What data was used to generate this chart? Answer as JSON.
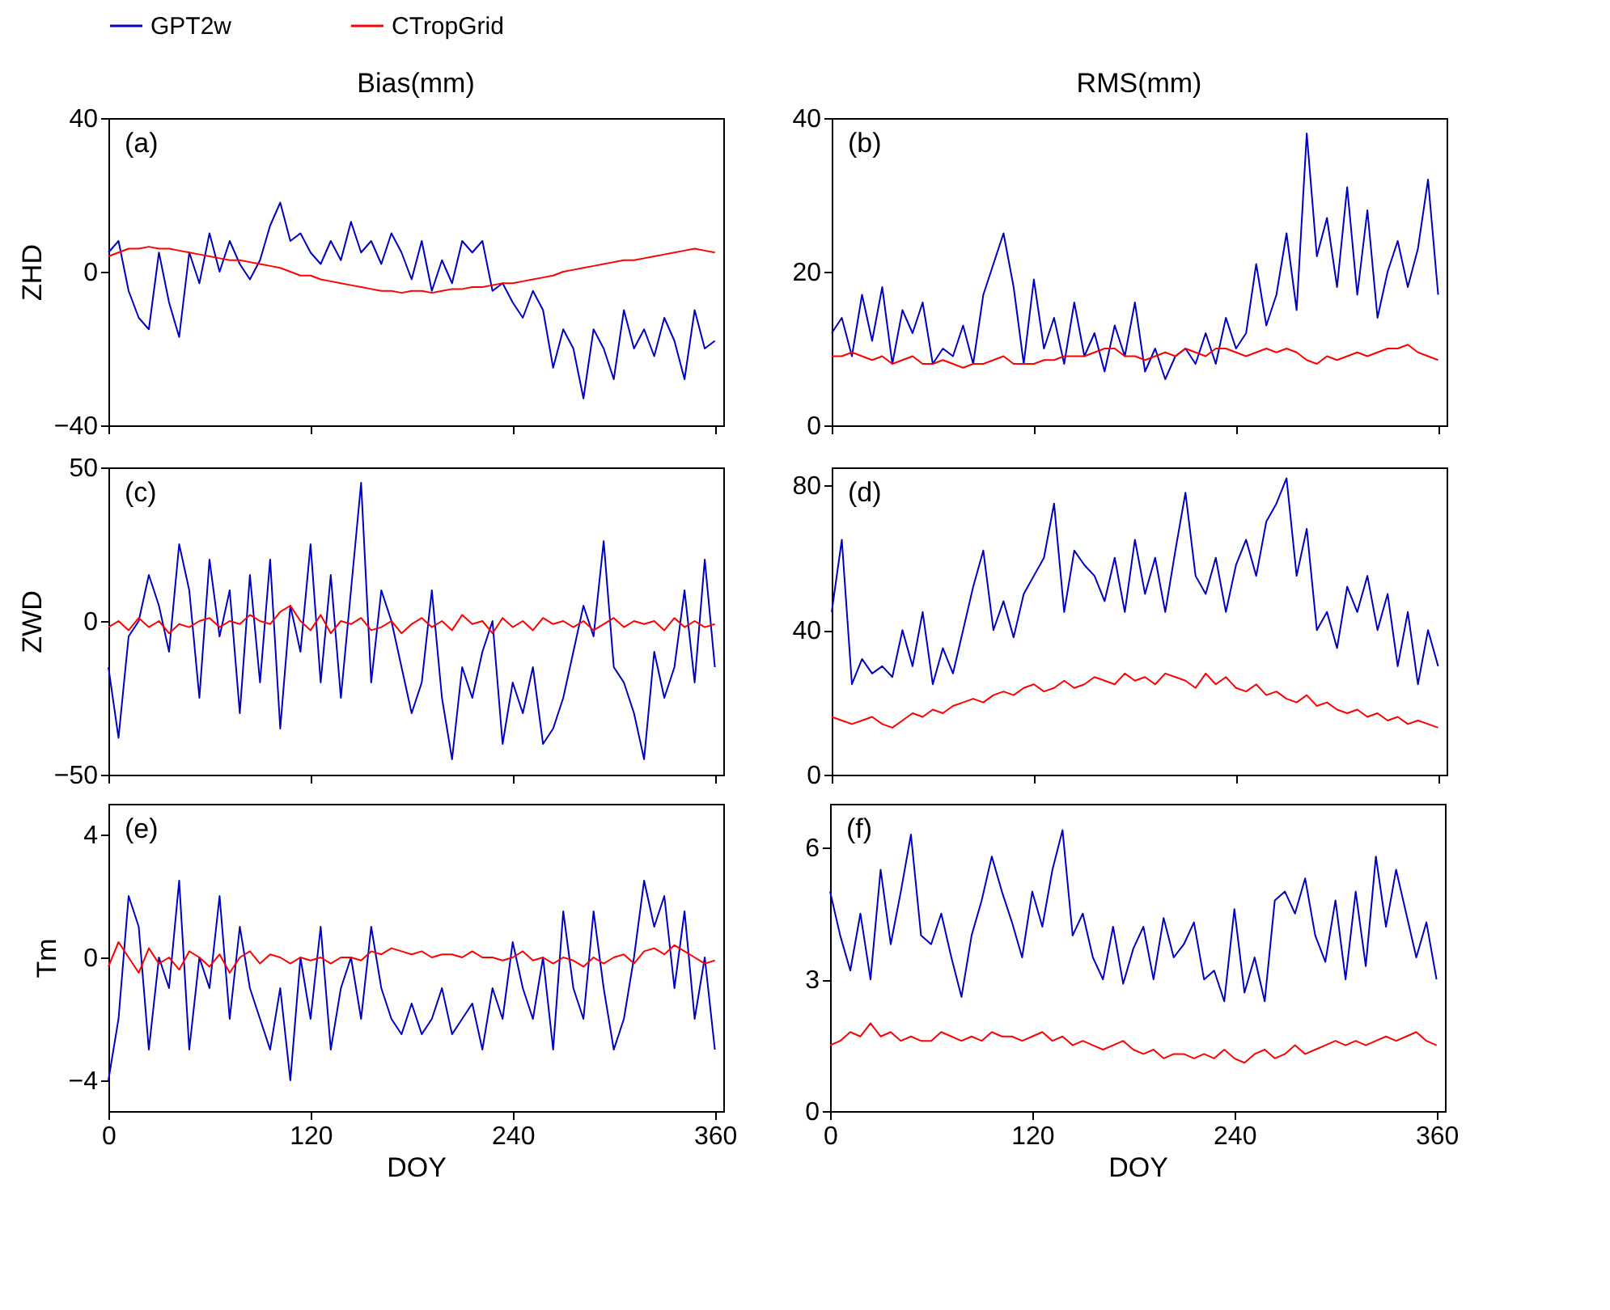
{
  "chart_data": [
    {
      "type": "line",
      "title": "Bias(mm)",
      "ylabel": "ZHD",
      "annotations": [
        "(a)"
      ],
      "legend": "top",
      "tick_labels": "y",
      "grid": false,
      "xlim": [
        0,
        365
      ],
      "xticks": [
        0,
        120,
        240,
        360
      ],
      "ylim": [
        -40,
        40
      ],
      "yticks": [
        -40,
        0,
        40
      ],
      "x": [
        0,
        6,
        12,
        18,
        24,
        30,
        36,
        42,
        48,
        54,
        60,
        66,
        72,
        78,
        84,
        90,
        96,
        102,
        108,
        114,
        120,
        126,
        132,
        138,
        144,
        150,
        156,
        162,
        168,
        174,
        180,
        186,
        192,
        198,
        204,
        210,
        216,
        222,
        228,
        234,
        240,
        246,
        252,
        258,
        264,
        270,
        276,
        282,
        288,
        294,
        300,
        306,
        312,
        318,
        324,
        330,
        336,
        342,
        348,
        354,
        360
      ],
      "series": [
        {
          "name": "GPT2w",
          "color": "#0000c0",
          "values": [
            5,
            8,
            -5,
            -12,
            -15,
            5,
            -8,
            -17,
            5,
            -3,
            10,
            0,
            8,
            2,
            -2,
            3,
            12,
            18,
            8,
            10,
            5,
            2,
            8,
            3,
            13,
            5,
            8,
            2,
            10,
            5,
            -2,
            8,
            -5,
            3,
            -3,
            8,
            5,
            8,
            -5,
            -3,
            -8,
            -12,
            -5,
            -10,
            -25,
            -15,
            -20,
            -33,
            -15,
            -20,
            -28,
            -10,
            -20,
            -15,
            -22,
            -12,
            -18,
            -28,
            -10,
            -20,
            -18
          ]
        },
        {
          "name": "CTropGrid",
          "color": "#ff0000",
          "values": [
            4,
            5,
            6,
            6,
            6.5,
            6,
            6,
            5.5,
            5,
            4.5,
            4,
            3.5,
            3,
            3,
            2.5,
            2,
            1.5,
            1,
            0,
            -1,
            -1,
            -2,
            -2.5,
            -3,
            -3.5,
            -4,
            -4.5,
            -5,
            -5,
            -5.5,
            -5,
            -5,
            -5.5,
            -5,
            -4.5,
            -4.5,
            -4,
            -4,
            -3.5,
            -3,
            -3,
            -2.5,
            -2,
            -1.5,
            -1,
            0,
            0.5,
            1,
            1.5,
            2,
            2.5,
            3,
            3,
            3.5,
            4,
            4.5,
            5,
            5.5,
            6,
            5.5,
            5
          ]
        }
      ]
    },
    {
      "type": "line",
      "title": "RMS(mm)",
      "annotations": [
        "(b)"
      ],
      "tick_labels": "y",
      "grid": false,
      "xlim": [
        0,
        365
      ],
      "xticks": [
        0,
        120,
        240,
        360
      ],
      "ylim": [
        0,
        40
      ],
      "yticks": [
        0,
        20,
        40
      ],
      "x": [
        0,
        6,
        12,
        18,
        24,
        30,
        36,
        42,
        48,
        54,
        60,
        66,
        72,
        78,
        84,
        90,
        96,
        102,
        108,
        114,
        120,
        126,
        132,
        138,
        144,
        150,
        156,
        162,
        168,
        174,
        180,
        186,
        192,
        198,
        204,
        210,
        216,
        222,
        228,
        234,
        240,
        246,
        252,
        258,
        264,
        270,
        276,
        282,
        288,
        294,
        300,
        306,
        312,
        318,
        324,
        330,
        336,
        342,
        348,
        354,
        360
      ],
      "series": [
        {
          "name": "GPT2w",
          "color": "#0000c0",
          "values": [
            12,
            14,
            9,
            17,
            11,
            18,
            8,
            15,
            12,
            16,
            8,
            10,
            9,
            13,
            8,
            17,
            21,
            25,
            18,
            8,
            19,
            10,
            14,
            8,
            16,
            9,
            12,
            7,
            13,
            9,
            16,
            7,
            10,
            6,
            9,
            10,
            8,
            12,
            8,
            14,
            10,
            12,
            21,
            13,
            17,
            25,
            15,
            38,
            22,
            27,
            18,
            31,
            17,
            28,
            14,
            20,
            24,
            18,
            23,
            32,
            17
          ]
        },
        {
          "name": "CTropGrid",
          "color": "#ff0000",
          "values": [
            9,
            9,
            9.5,
            9,
            8.5,
            9,
            8,
            8.5,
            9,
            8,
            8,
            8.5,
            8,
            7.5,
            8,
            8,
            8.5,
            9,
            8,
            8,
            8,
            8.5,
            8.5,
            9,
            9,
            9,
            9.5,
            10,
            10,
            9,
            9,
            8.5,
            9,
            9.5,
            9,
            10,
            9.5,
            9,
            10,
            10,
            9.5,
            9,
            9.5,
            10,
            9.5,
            10,
            9.5,
            8.5,
            8,
            9,
            8.5,
            9,
            9.5,
            9,
            9.5,
            10,
            10,
            10.5,
            9.5,
            9,
            8.5
          ]
        }
      ]
    },
    {
      "type": "line",
      "ylabel": "ZWD",
      "annotations": [
        "(c)"
      ],
      "tick_labels": "y",
      "grid": false,
      "xlim": [
        0,
        365
      ],
      "xticks": [
        0,
        120,
        240,
        360
      ],
      "ylim": [
        -50,
        50
      ],
      "yticks": [
        -50,
        0,
        50
      ],
      "x": [
        0,
        6,
        12,
        18,
        24,
        30,
        36,
        42,
        48,
        54,
        60,
        66,
        72,
        78,
        84,
        90,
        96,
        102,
        108,
        114,
        120,
        126,
        132,
        138,
        144,
        150,
        156,
        162,
        168,
        174,
        180,
        186,
        192,
        198,
        204,
        210,
        216,
        222,
        228,
        234,
        240,
        246,
        252,
        258,
        264,
        270,
        276,
        282,
        288,
        294,
        300,
        306,
        312,
        318,
        324,
        330,
        336,
        342,
        348,
        354,
        360
      ],
      "series": [
        {
          "name": "GPT2w",
          "color": "#0000c0",
          "values": [
            -15,
            -38,
            -5,
            0,
            15,
            5,
            -10,
            25,
            10,
            -25,
            20,
            -5,
            10,
            -30,
            15,
            -20,
            20,
            -35,
            5,
            -10,
            25,
            -20,
            15,
            -25,
            10,
            45,
            -20,
            10,
            0,
            -15,
            -30,
            -20,
            10,
            -25,
            -45,
            -15,
            -25,
            -10,
            0,
            -40,
            -20,
            -30,
            -15,
            -40,
            -35,
            -25,
            -10,
            5,
            -5,
            26,
            -15,
            -20,
            -30,
            -45,
            -10,
            -25,
            -15,
            10,
            -20,
            20,
            -15
          ]
        },
        {
          "name": "CTropGrid",
          "color": "#ff0000",
          "values": [
            -2,
            0,
            -3,
            1,
            -2,
            0,
            -4,
            -1,
            -2,
            0,
            1,
            -2,
            0,
            -1,
            2,
            0,
            -1,
            3,
            5,
            0,
            -3,
            2,
            -4,
            0,
            -1,
            1,
            -3,
            -2,
            0,
            -4,
            -1,
            1,
            -2,
            0,
            -3,
            2,
            -1,
            0,
            -4,
            1,
            -2,
            0,
            -3,
            1,
            -1,
            0,
            -2,
            0,
            -3,
            -1,
            1,
            -2,
            0,
            -1,
            0,
            -3,
            1,
            -2,
            0,
            -2,
            -1
          ]
        }
      ]
    },
    {
      "type": "line",
      "annotations": [
        "(d)"
      ],
      "tick_labels": "y",
      "grid": false,
      "xlim": [
        0,
        365
      ],
      "xticks": [
        0,
        120,
        240,
        360
      ],
      "ylim": [
        0,
        85
      ],
      "yticks": [
        0,
        40,
        80
      ],
      "x": [
        0,
        6,
        12,
        18,
        24,
        30,
        36,
        42,
        48,
        54,
        60,
        66,
        72,
        78,
        84,
        90,
        96,
        102,
        108,
        114,
        120,
        126,
        132,
        138,
        144,
        150,
        156,
        162,
        168,
        174,
        180,
        186,
        192,
        198,
        204,
        210,
        216,
        222,
        228,
        234,
        240,
        246,
        252,
        258,
        264,
        270,
        276,
        282,
        288,
        294,
        300,
        306,
        312,
        318,
        324,
        330,
        336,
        342,
        348,
        354,
        360
      ],
      "series": [
        {
          "name": "GPT2w",
          "color": "#0000c0",
          "values": [
            45,
            65,
            25,
            32,
            28,
            30,
            27,
            40,
            30,
            45,
            25,
            35,
            28,
            40,
            52,
            62,
            40,
            48,
            38,
            50,
            55,
            60,
            75,
            45,
            62,
            58,
            55,
            48,
            60,
            45,
            65,
            50,
            60,
            45,
            62,
            78,
            55,
            50,
            60,
            45,
            58,
            65,
            55,
            70,
            75,
            82,
            55,
            68,
            40,
            45,
            35,
            52,
            45,
            55,
            40,
            50,
            30,
            45,
            25,
            40,
            30
          ]
        },
        {
          "name": "CTropGrid",
          "color": "#ff0000",
          "values": [
            16,
            15,
            14,
            15,
            16,
            14,
            13,
            15,
            17,
            16,
            18,
            17,
            19,
            20,
            21,
            20,
            22,
            23,
            22,
            24,
            25,
            23,
            24,
            26,
            24,
            25,
            27,
            26,
            25,
            28,
            26,
            27,
            25,
            28,
            27,
            26,
            24,
            28,
            25,
            27,
            24,
            23,
            25,
            22,
            23,
            21,
            20,
            22,
            19,
            20,
            18,
            17,
            18,
            16,
            17,
            15,
            16,
            14,
            15,
            14,
            13
          ]
        }
      ]
    },
    {
      "type": "line",
      "ylabel": "Tm",
      "xlabel": "DOY",
      "annotations": [
        "(e)"
      ],
      "grid": false,
      "xlim": [
        0,
        365
      ],
      "xticks": [
        0,
        120,
        240,
        360
      ],
      "ylim": [
        -5,
        5
      ],
      "yticks": [
        -4,
        0,
        4
      ],
      "x": [
        0,
        6,
        12,
        18,
        24,
        30,
        36,
        42,
        48,
        54,
        60,
        66,
        72,
        78,
        84,
        90,
        96,
        102,
        108,
        114,
        120,
        126,
        132,
        138,
        144,
        150,
        156,
        162,
        168,
        174,
        180,
        186,
        192,
        198,
        204,
        210,
        216,
        222,
        228,
        234,
        240,
        246,
        252,
        258,
        264,
        270,
        276,
        282,
        288,
        294,
        300,
        306,
        312,
        318,
        324,
        330,
        336,
        342,
        348,
        354,
        360
      ],
      "series": [
        {
          "name": "GPT2w",
          "color": "#0000c0",
          "values": [
            -4,
            -2,
            2,
            1,
            -3,
            0,
            -1,
            2.5,
            -3,
            0,
            -1,
            2,
            -2,
            1,
            -1,
            -2,
            -3,
            -1,
            -4,
            0,
            -2,
            1,
            -3,
            -1,
            0,
            -2,
            1,
            -1,
            -2,
            -2.5,
            -1.5,
            -2.5,
            -2,
            -1,
            -2.5,
            -2,
            -1.5,
            -3,
            -1,
            -2,
            0.5,
            -1,
            -2,
            0,
            -3,
            1.5,
            -1,
            -2,
            1.5,
            -1,
            -3,
            -2,
            0,
            2.5,
            1,
            2,
            -1,
            1.5,
            -2,
            0,
            -3
          ]
        },
        {
          "name": "CTropGrid",
          "color": "#ff0000",
          "values": [
            -0.3,
            0.5,
            0,
            -0.5,
            0.3,
            -0.2,
            0,
            -0.4,
            0.2,
            0,
            -0.3,
            0.1,
            -0.5,
            0,
            0.2,
            -0.2,
            0.1,
            0,
            -0.2,
            0,
            -0.1,
            0,
            -0.2,
            0,
            0,
            -0.1,
            0.2,
            0.1,
            0.3,
            0.2,
            0.1,
            0.2,
            0,
            0.1,
            0.1,
            0,
            0.2,
            0,
            0,
            -0.1,
            0,
            0.2,
            -0.1,
            0,
            -0.2,
            0,
            -0.1,
            -0.3,
            0,
            -0.2,
            0,
            0.1,
            -0.2,
            0.2,
            0.3,
            0.1,
            0.4,
            0.2,
            0,
            -0.2,
            -0.1
          ]
        }
      ]
    },
    {
      "type": "line",
      "xlabel": "DOY",
      "annotations": [
        "(f)"
      ],
      "grid": false,
      "xlim": [
        0,
        365
      ],
      "xticks": [
        0,
        120,
        240,
        360
      ],
      "ylim": [
        0,
        7
      ],
      "yticks": [
        0,
        3,
        6
      ],
      "x": [
        0,
        6,
        12,
        18,
        24,
        30,
        36,
        42,
        48,
        54,
        60,
        66,
        72,
        78,
        84,
        90,
        96,
        102,
        108,
        114,
        120,
        126,
        132,
        138,
        144,
        150,
        156,
        162,
        168,
        174,
        180,
        186,
        192,
        198,
        204,
        210,
        216,
        222,
        228,
        234,
        240,
        246,
        252,
        258,
        264,
        270,
        276,
        282,
        288,
        294,
        300,
        306,
        312,
        318,
        324,
        330,
        336,
        342,
        348,
        354,
        360
      ],
      "series": [
        {
          "name": "GPT2w",
          "color": "#0000c0",
          "values": [
            5,
            4,
            3.2,
            4.5,
            3,
            5.5,
            3.8,
            5,
            6.3,
            4,
            3.8,
            4.5,
            3.5,
            2.6,
            4,
            4.8,
            5.8,
            5,
            4.3,
            3.5,
            5,
            4.2,
            5.5,
            6.4,
            4,
            4.5,
            3.5,
            3,
            4.2,
            2.9,
            3.7,
            4.2,
            3,
            4.4,
            3.5,
            3.8,
            4.3,
            3,
            3.2,
            2.5,
            4.6,
            2.7,
            3.5,
            2.5,
            4.8,
            5,
            4.5,
            5.3,
            4,
            3.4,
            4.8,
            3,
            5,
            3.3,
            5.8,
            4.2,
            5.5,
            4.5,
            3.5,
            4.3,
            3
          ]
        },
        {
          "name": "CTropGrid",
          "color": "#ff0000",
          "values": [
            1.5,
            1.6,
            1.8,
            1.7,
            2,
            1.7,
            1.8,
            1.6,
            1.7,
            1.6,
            1.6,
            1.8,
            1.7,
            1.6,
            1.7,
            1.6,
            1.8,
            1.7,
            1.7,
            1.6,
            1.7,
            1.8,
            1.6,
            1.7,
            1.5,
            1.6,
            1.5,
            1.4,
            1.5,
            1.6,
            1.4,
            1.3,
            1.4,
            1.2,
            1.3,
            1.3,
            1.2,
            1.3,
            1.2,
            1.4,
            1.2,
            1.1,
            1.3,
            1.4,
            1.2,
            1.3,
            1.5,
            1.3,
            1.4,
            1.5,
            1.6,
            1.5,
            1.6,
            1.5,
            1.6,
            1.7,
            1.6,
            1.7,
            1.8,
            1.6,
            1.5
          ]
        }
      ]
    }
  ]
}
